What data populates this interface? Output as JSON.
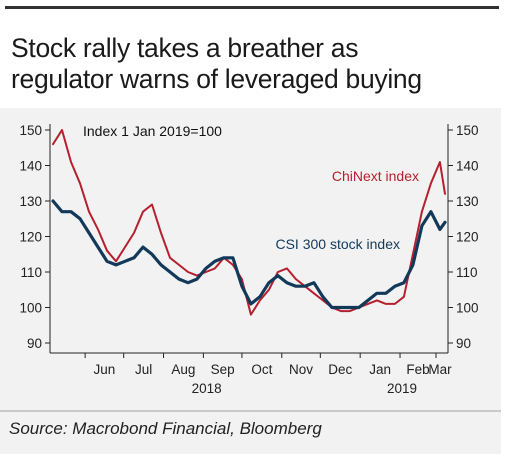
{
  "title_line1": "Stock rally takes a breather as",
  "title_line2": "regulator warns of leveraged buying",
  "source": "Source: Macrobond Financial, Bloomberg",
  "chart_data": {
    "type": "line",
    "index_note": "Index 1 Jan 2019=100",
    "ylim": [
      90,
      150
    ],
    "y_ticks": [
      "150",
      "140",
      "130",
      "120",
      "110",
      "100",
      "90"
    ],
    "x_tick_labels": [
      "Jun",
      "Jul",
      "Aug",
      "Sep",
      "Oct",
      "Nov",
      "Dec",
      "Jan",
      "Feb",
      "Mar"
    ],
    "year_labels": [
      "2018",
      "2019"
    ],
    "x": [
      "2018-05-07",
      "2018-05-14",
      "2018-05-21",
      "2018-05-28",
      "2018-06-04",
      "2018-06-11",
      "2018-06-18",
      "2018-06-25",
      "2018-07-02",
      "2018-07-09",
      "2018-07-16",
      "2018-07-23",
      "2018-07-30",
      "2018-08-06",
      "2018-08-13",
      "2018-08-20",
      "2018-08-27",
      "2018-09-03",
      "2018-09-10",
      "2018-09-17",
      "2018-09-24",
      "2018-10-01",
      "2018-10-08",
      "2018-10-15",
      "2018-10-22",
      "2018-10-29",
      "2018-11-05",
      "2018-11-12",
      "2018-11-19",
      "2018-11-26",
      "2018-12-03",
      "2018-12-10",
      "2018-12-17",
      "2018-12-24",
      "2018-12-31",
      "2019-01-07",
      "2019-01-14",
      "2019-01-21",
      "2019-01-28",
      "2019-02-04",
      "2019-02-11",
      "2019-02-18",
      "2019-02-25",
      "2019-03-04",
      "2019-03-08"
    ],
    "series": [
      {
        "name": "ChiNext index",
        "color": "#b5202e",
        "values": [
          146,
          150,
          141,
          135,
          127,
          122,
          116,
          113,
          117,
          121,
          127,
          129,
          121,
          114,
          112,
          110,
          109,
          110,
          111,
          114,
          112,
          108,
          98,
          102,
          105,
          110,
          111,
          108,
          106,
          104,
          102,
          100,
          99,
          99,
          100,
          101,
          102,
          101,
          101,
          103,
          115,
          127,
          135,
          141,
          132
        ]
      },
      {
        "name": "CSI 300 stock index",
        "color": "#13395a",
        "values": [
          130,
          127,
          127,
          125,
          121,
          117,
          113,
          112,
          113,
          114,
          117,
          115,
          112,
          110,
          108,
          107,
          108,
          111,
          113,
          114,
          114,
          106,
          101,
          103,
          107,
          109,
          107,
          106,
          106,
          107,
          103,
          100,
          100,
          100,
          100,
          102,
          104,
          104,
          106,
          107,
          112,
          123,
          127,
          122,
          124
        ]
      }
    ]
  }
}
